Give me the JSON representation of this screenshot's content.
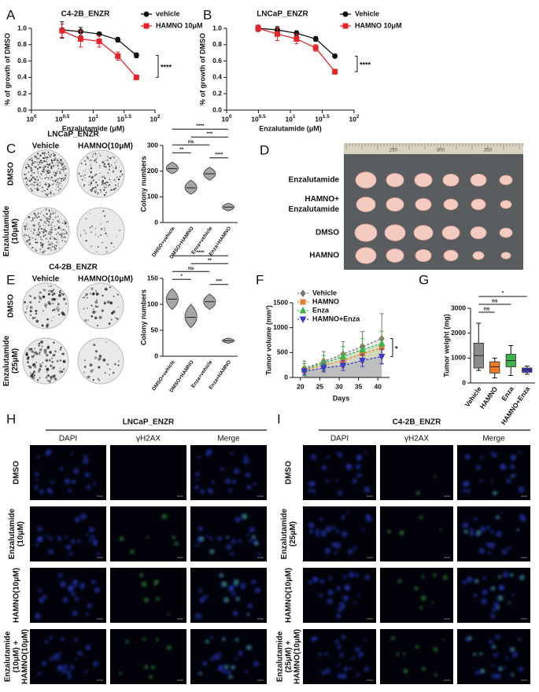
{
  "panel_labels": [
    "A",
    "B",
    "C",
    "D",
    "E",
    "F",
    "G",
    "H",
    "I"
  ],
  "chart_data": [
    {
      "type": "line",
      "title": "C4-2B_ENZR",
      "xlabel": "Enzalutamide (μM)",
      "ylabel": "% of growth of DMSO",
      "xscale": "log",
      "xlim": [
        1,
        100
      ],
      "xticks": [
        {
          "value": 1,
          "label": "10",
          "exp": "0"
        },
        {
          "value": 3.162,
          "label": "10",
          "exp": "0.5"
        },
        {
          "value": 10,
          "label": "10",
          "exp": "1"
        },
        {
          "value": 31.62,
          "label": "10",
          "exp": "1.5"
        },
        {
          "value": 100,
          "label": "10",
          "exp": "2"
        }
      ],
      "ylim": [
        0,
        1
      ],
      "yticks": [
        {
          "value": 0,
          "label": "0.0"
        },
        0.2,
        0.4,
        0.6,
        0.8,
        {
          "value": 1,
          "label": "1.0"
        }
      ],
      "legend": "upper right",
      "x": [
        3.125,
        6.25,
        12.5,
        25,
        50
      ],
      "series": [
        {
          "name": "vehicle",
          "color": "#111111",
          "marker": "circle",
          "values": [
            0.98,
            0.96,
            0.93,
            0.86,
            0.67
          ],
          "errors": [
            0.1,
            0.05,
            0.02,
            0.03,
            0.03
          ]
        },
        {
          "name": "HAMNO 10μM",
          "color": "#e8242a",
          "marker": "square",
          "values": [
            0.97,
            0.87,
            0.84,
            0.66,
            0.4
          ],
          "errors": [
            0.08,
            0.1,
            0.07,
            0.05,
            0.02
          ]
        }
      ],
      "annotation": "****"
    },
    {
      "type": "line",
      "title": "LNCaP_ENZR",
      "xlabel": "Enzalutamide (μM)",
      "ylabel": "% of growth of DMSO",
      "xscale": "log",
      "xlim": [
        1,
        100
      ],
      "xticks": [
        {
          "value": 1,
          "label": "10",
          "exp": "0"
        },
        {
          "value": 3.162,
          "label": "10",
          "exp": "0.5"
        },
        {
          "value": 10,
          "label": "10",
          "exp": "1"
        },
        {
          "value": 31.62,
          "label": "10",
          "exp": "1.5"
        },
        {
          "value": 100,
          "label": "10",
          "exp": "2"
        }
      ],
      "ylim": [
        0,
        1
      ],
      "yticks": [
        {
          "value": 0,
          "label": "0.0"
        },
        0.2,
        0.4,
        0.6,
        0.8,
        {
          "value": 1,
          "label": "1.0"
        }
      ],
      "legend": "upper right",
      "x": [
        3.125,
        6.25,
        12.5,
        25,
        50
      ],
      "series": [
        {
          "name": "Vehicle",
          "color": "#111111",
          "marker": "circle",
          "values": [
            1.0,
            0.98,
            0.94,
            0.87,
            0.66
          ],
          "errors": [
            0.04,
            0.04,
            0.03,
            0.03,
            0.02
          ]
        },
        {
          "name": "HAMNO 10μM",
          "color": "#e8242a",
          "marker": "square",
          "values": [
            1.0,
            0.93,
            0.87,
            0.76,
            0.47
          ],
          "errors": [
            0.04,
            0.08,
            0.06,
            0.04,
            0.03
          ]
        }
      ],
      "annotation": "****"
    },
    {
      "type": "violin",
      "ylabel": "Colony numbers",
      "ylim": [
        0,
        300
      ],
      "yticks": [
        0,
        100,
        200,
        300
      ],
      "color": "#a6a6a6",
      "categories": [
        "DMSO+vehicle",
        "DMSO+HAMNO",
        "Enza+vehicle",
        "Enza+HAMNO"
      ],
      "values": [
        210,
        135,
        190,
        60
      ],
      "ranges": [
        [
          190,
          235
        ],
        [
          110,
          165
        ],
        [
          165,
          215
        ],
        [
          45,
          75
        ]
      ],
      "brackets": [
        {
          "pair": [
            "DMSO+vehicle",
            "DMSO+HAMNO"
          ],
          "label": "**"
        },
        {
          "pair": [
            "Enza+vehicle",
            "Enza+HAMNO"
          ],
          "label": "****"
        },
        {
          "pair": [
            "DMSO+vehicle",
            "Enza+vehicle"
          ],
          "label": "ns"
        },
        {
          "pair": [
            "DMSO+HAMNO",
            "Enza+HAMNO"
          ],
          "label": "***"
        },
        {
          "pair": [
            "DMSO+vehicle",
            "Enza+HAMNO"
          ],
          "label": "****"
        }
      ]
    },
    {
      "type": "violin",
      "ylabel": "Colony numbers",
      "ylim": [
        0,
        150
      ],
      "yticks": [
        0,
        50,
        100,
        150
      ],
      "color": "#a6a6a6",
      "categories": [
        "DMSO+vehicle",
        "DMSO+HAMNO",
        "Enza+vehicle",
        "Enza+HAMNO"
      ],
      "values": [
        110,
        75,
        105,
        30
      ],
      "ranges": [
        [
          90,
          130
        ],
        [
          55,
          100
        ],
        [
          90,
          120
        ],
        [
          25,
          35
        ]
      ],
      "brackets": [
        {
          "pair": [
            "DMSO+vehicle",
            "DMSO+HAMNO"
          ],
          "label": "*"
        },
        {
          "pair": [
            "Enza+vehicle",
            "Enza+HAMNO"
          ],
          "label": "***"
        },
        {
          "pair": [
            "DMSO+vehicle",
            "Enza+vehicle"
          ],
          "label": "ns"
        },
        {
          "pair": [
            "DMSO+HAMNO",
            "Enza+HAMNO"
          ],
          "label": "**"
        },
        {
          "pair": [
            "DMSO+vehicle",
            "Enza+HAMNO"
          ],
          "label": "****"
        }
      ]
    },
    {
      "type": "line",
      "xlabel": "Days",
      "ylabel": "Tumor volume (mm³)",
      "xlim": [
        18,
        43
      ],
      "xticks": [
        20,
        25,
        30,
        35,
        40
      ],
      "ylim": [
        0,
        1500
      ],
      "yticks": [
        0,
        500,
        1000,
        1500
      ],
      "legend": "upper left",
      "area": true,
      "line_style": "dashed",
      "x": [
        21,
        26,
        31,
        36,
        41
      ],
      "series": [
        {
          "name": "Vehicle",
          "color": "#777777",
          "marker": "diamond",
          "values": [
            180,
            320,
            470,
            620,
            780
          ],
          "errors": [
            150,
            200,
            250,
            300,
            500
          ]
        },
        {
          "name": "HAMNO",
          "color": "#f07c28",
          "marker": "square",
          "values": [
            140,
            250,
            340,
            480,
            600
          ],
          "errors": [
            80,
            120,
            150,
            180,
            200
          ]
        },
        {
          "name": "Enza",
          "color": "#3cb34a",
          "marker": "triangle",
          "values": [
            160,
            290,
            420,
            560,
            680
          ],
          "errors": [
            120,
            150,
            200,
            220,
            250
          ]
        },
        {
          "name": "HAMNO+Enza",
          "color": "#3b3bc8",
          "marker": "triangle-down",
          "values": [
            120,
            190,
            240,
            340,
            420
          ],
          "errors": [
            60,
            80,
            100,
            120,
            150
          ]
        }
      ],
      "annotation": "*"
    },
    {
      "type": "box",
      "ylabel": "Tumor weight (mg)",
      "ylim": [
        0,
        3000
      ],
      "yticks": [
        0,
        1000,
        2000,
        3000
      ],
      "categories": [
        "Vehicle",
        "HAMNO",
        "Enza",
        "HAMNO+Enza"
      ],
      "colors": [
        "#8c8c8c",
        "#f07c28",
        "#3cb34a",
        "#3b3bc8"
      ],
      "min": [
        500,
        200,
        300,
        350
      ],
      "q1": [
        600,
        400,
        650,
        430
      ],
      "median": [
        1100,
        650,
        900,
        520
      ],
      "q3": [
        1600,
        850,
        1150,
        600
      ],
      "max": [
        2400,
        1000,
        1500,
        680
      ],
      "brackets": [
        {
          "pair": [
            "Vehicle",
            "HAMNO"
          ],
          "label": "ns"
        },
        {
          "pair": [
            "Vehicle",
            "Enza"
          ],
          "label": "ns"
        },
        {
          "pair": [
            "Vehicle",
            "HAMNO+Enza"
          ],
          "label": "*"
        }
      ]
    }
  ],
  "colony_assays": [
    {
      "title": "LNCaP_ENZR",
      "columns": [
        "Vehicle",
        "HAMNO(10μM)"
      ],
      "rows": [
        [
          "DMSO"
        ],
        [
          "Enzalutamide",
          "(10μM)"
        ]
      ]
    },
    {
      "title": "C4-2B_ENZR",
      "columns": [
        "Vehicle",
        "HAMNO(10μM)"
      ],
      "rows": [
        [
          "DMSO"
        ],
        [
          "Enzalutamide",
          "(25μM)"
        ]
      ]
    }
  ],
  "tumor_photo": {
    "rows": [
      [
        "Enzalutamide"
      ],
      [
        "HAMNO+",
        "Enzalutamide"
      ],
      [
        "DMSO"
      ],
      [
        "HAMNO"
      ]
    ],
    "ruler": [
      "250",
      "300",
      "350"
    ]
  },
  "microscopy": [
    {
      "title": "LNCaP_ENZR",
      "columns": [
        "DAPI",
        "γH2AX",
        "Merge"
      ],
      "rows": [
        [
          "DMSO"
        ],
        [
          "Enzalutamide",
          "(10μM)"
        ],
        [
          "HAMNO(10μM)"
        ],
        [
          "Enzalutamide",
          "(10μM) +",
          "HAMNO(10μM)"
        ]
      ]
    },
    {
      "title": "C4-2B_ENZR",
      "columns": [
        "DAPI",
        "γH2AX",
        "Merge"
      ],
      "rows": [
        [
          "DMSO"
        ],
        [
          "Enzalutamide",
          "(25μM)"
        ],
        [
          "HAMNO(10μM)"
        ],
        [
          "Enzalutamide",
          "(25μM) +",
          "HAMNO(10μM)"
        ]
      ]
    }
  ]
}
